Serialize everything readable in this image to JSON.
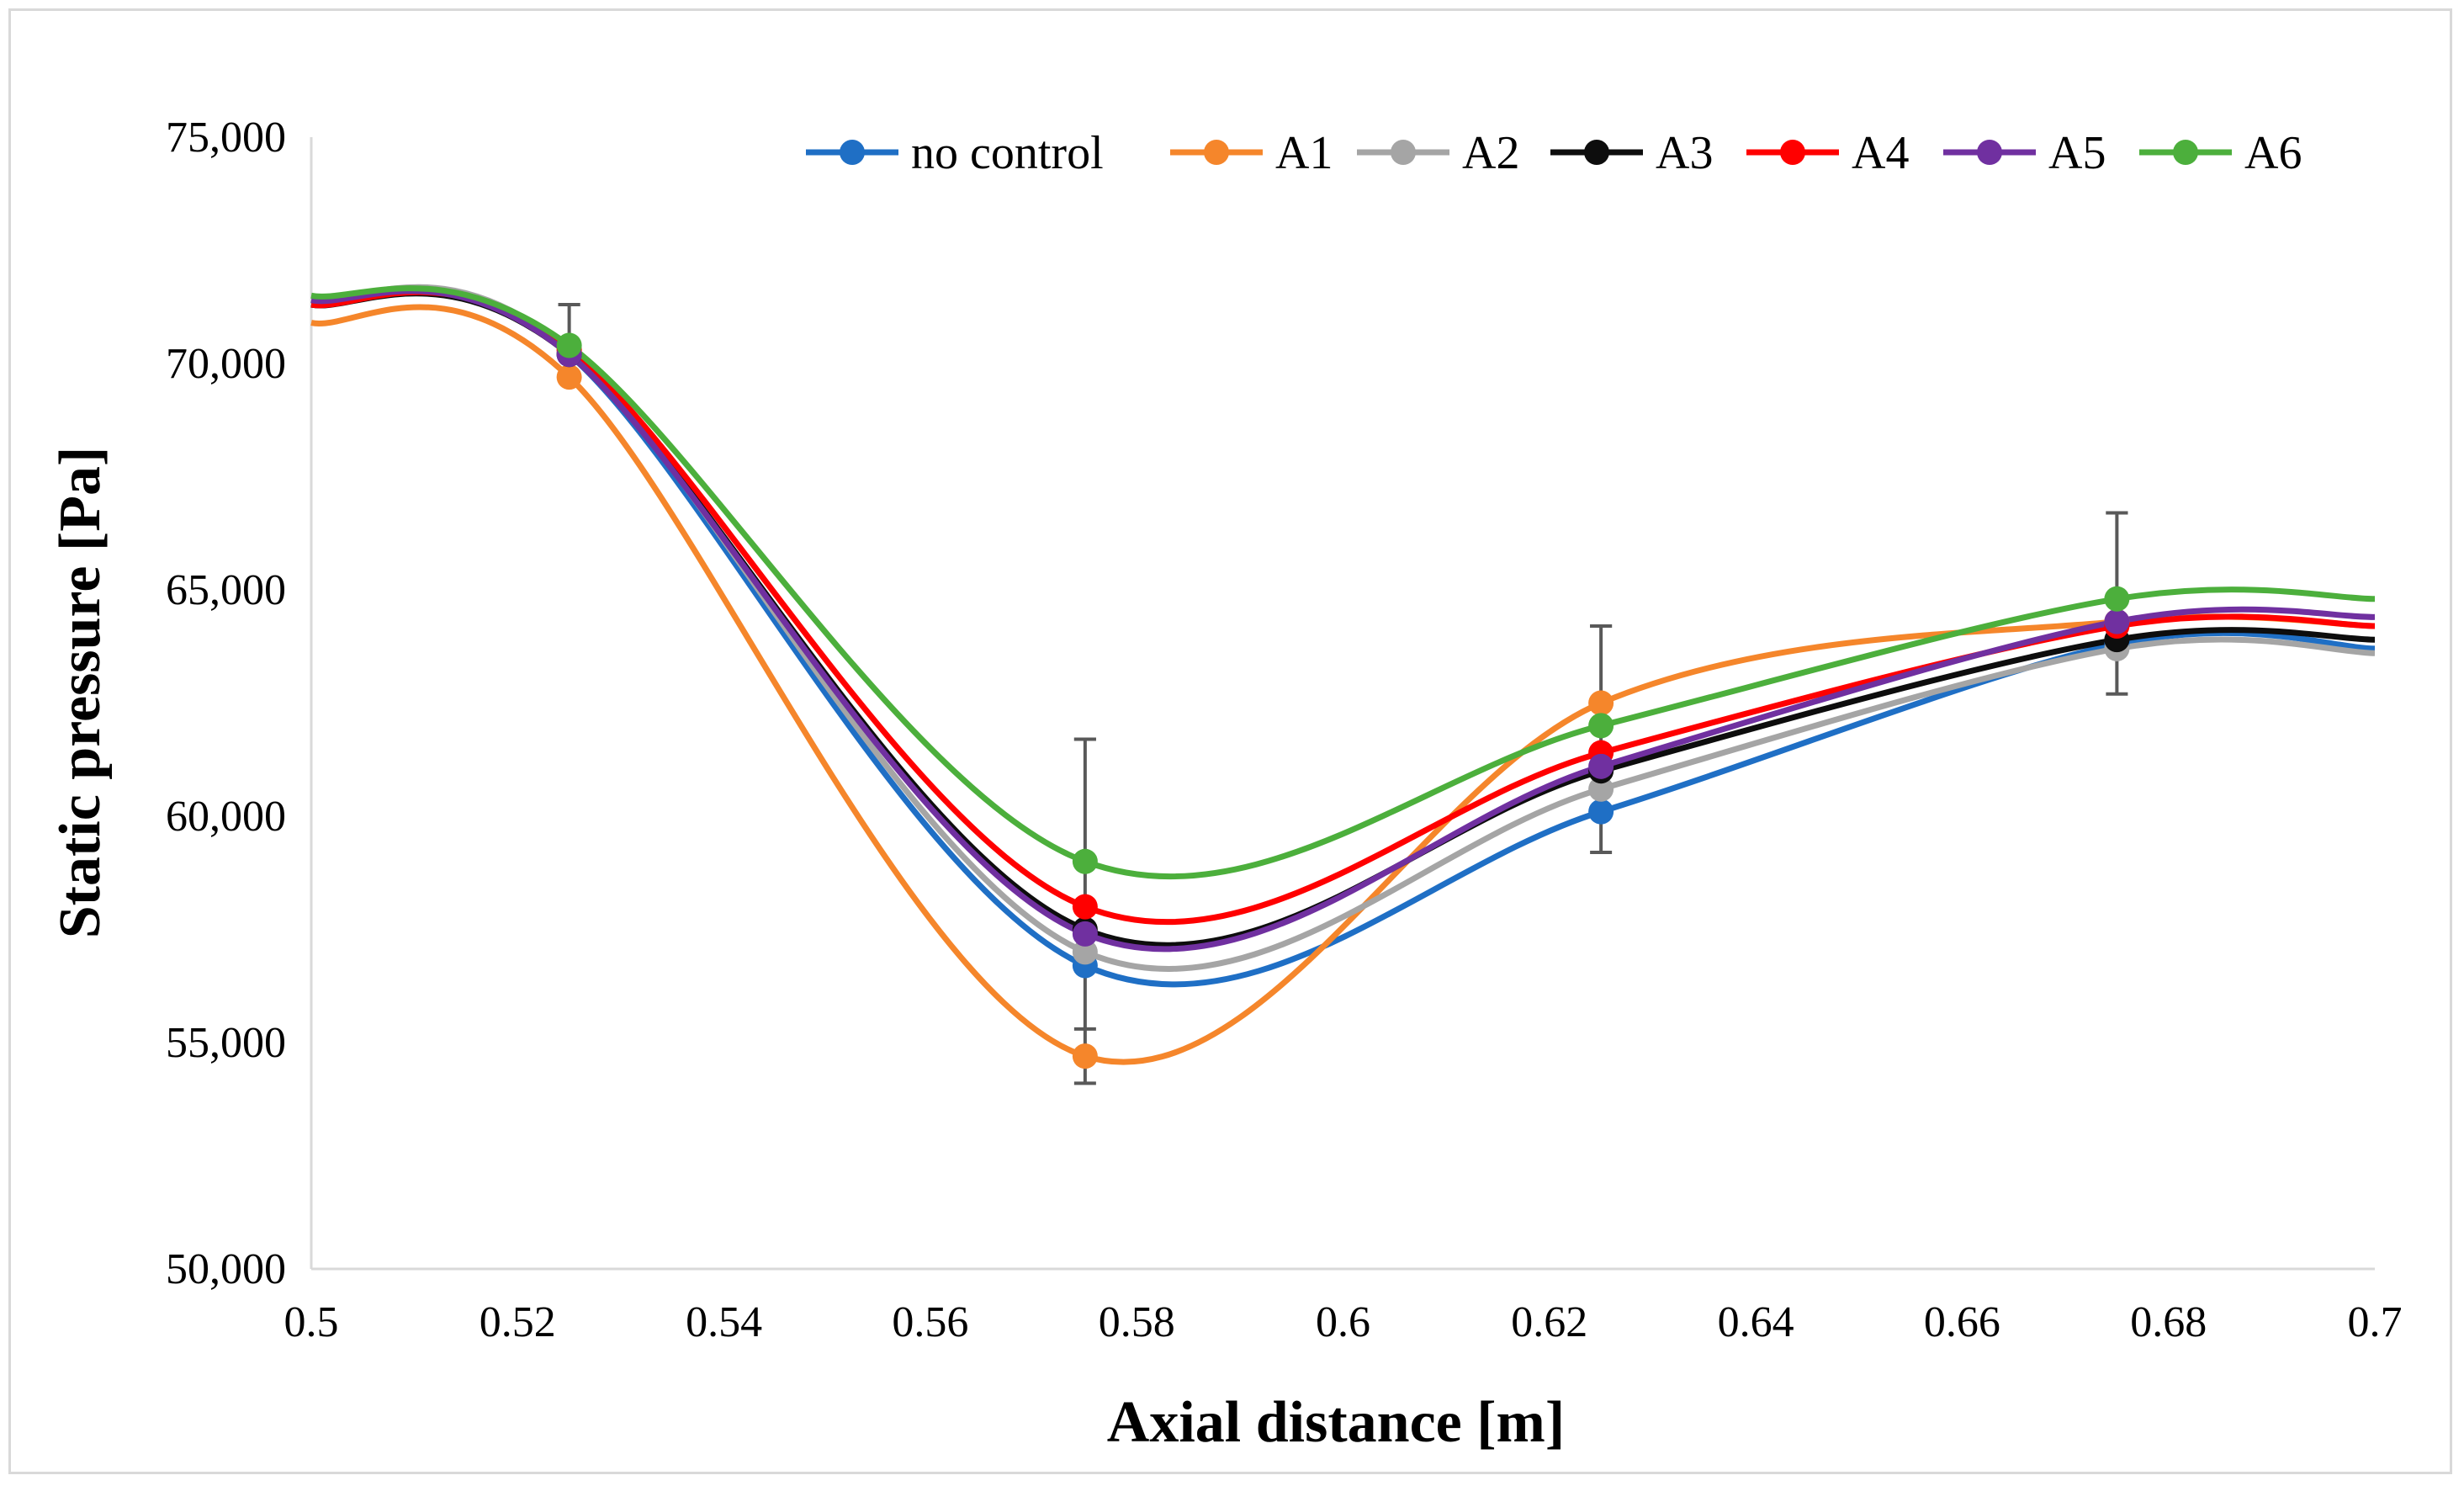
{
  "chart_data": {
    "type": "line",
    "title": "",
    "xlabel": "Axial distance [m]",
    "ylabel": "Static pressure [Pa]",
    "xlim": [
      0.5,
      0.7
    ],
    "ylim": [
      50000,
      75000
    ],
    "x_ticks": [
      0.5,
      0.52,
      0.54,
      0.56,
      0.58,
      0.6,
      0.62,
      0.64,
      0.66,
      0.68,
      0.7
    ],
    "x_tick_labels": [
      "0.5",
      "0.52",
      "0.54",
      "0.56",
      "0.58",
      "0.6",
      "0.62",
      "0.64",
      "0.66",
      "0.68",
      "0.7"
    ],
    "y_ticks": [
      50000,
      55000,
      60000,
      65000,
      70000,
      75000
    ],
    "y_tick_labels": [
      "50,000",
      "55,000",
      "60,000",
      "65,000",
      "70,000",
      "75,000"
    ],
    "grid": false,
    "legend_position": "top",
    "x": [
      0.525,
      0.575,
      0.625,
      0.675
    ],
    "series": [
      {
        "name": "no control",
        "color": "#1f6fc5",
        "values": [
          70200,
          56700,
          60100,
          63800
        ],
        "curve": [
          [
            0.5,
            71300
          ],
          [
            0.525,
            70200
          ],
          [
            0.575,
            56700
          ],
          [
            0.625,
            60100
          ],
          [
            0.675,
            63800
          ],
          [
            0.7,
            63700
          ]
        ],
        "error_bars": [
          0,
          0,
          0,
          0
        ]
      },
      {
        "name": "A1",
        "color": "#f5862b",
        "values": [
          69700,
          54700,
          62500,
          64300
        ],
        "curve": [
          [
            0.5,
            70900
          ],
          [
            0.525,
            69700
          ],
          [
            0.575,
            54700
          ],
          [
            0.625,
            62500
          ],
          [
            0.675,
            64300
          ],
          [
            0.7,
            64200
          ]
        ],
        "error_bars": [
          0,
          600,
          0,
          0
        ]
      },
      {
        "name": "A2",
        "color": "#a5a5a5",
        "values": [
          70300,
          57000,
          60600,
          63700
        ],
        "curve": [
          [
            0.5,
            71400
          ],
          [
            0.525,
            70300
          ],
          [
            0.575,
            57000
          ],
          [
            0.625,
            60600
          ],
          [
            0.675,
            63700
          ],
          [
            0.7,
            63600
          ]
        ],
        "error_bars": [
          0,
          0,
          0,
          0
        ]
      },
      {
        "name": "A3",
        "color": "#0d0d0d",
        "values": [
          70200,
          57500,
          61000,
          63900
        ],
        "curve": [
          [
            0.5,
            71300
          ],
          [
            0.525,
            70200
          ],
          [
            0.575,
            57500
          ],
          [
            0.625,
            61000
          ],
          [
            0.675,
            63900
          ],
          [
            0.7,
            63900
          ]
        ],
        "error_bars": [
          0,
          0,
          0,
          0
        ]
      },
      {
        "name": "A4",
        "color": "#ff0000",
        "values": [
          70300,
          58000,
          61400,
          64200
        ],
        "curve": [
          [
            0.5,
            71300
          ],
          [
            0.525,
            70300
          ],
          [
            0.575,
            58000
          ],
          [
            0.625,
            61400
          ],
          [
            0.675,
            64200
          ],
          [
            0.7,
            64200
          ]
        ],
        "error_bars": [
          0,
          0,
          0,
          0
        ]
      },
      {
        "name": "A5",
        "color": "#7030a0",
        "values": [
          70200,
          57400,
          61100,
          64300
        ],
        "curve": [
          [
            0.5,
            71400
          ],
          [
            0.525,
            70200
          ],
          [
            0.575,
            57400
          ],
          [
            0.625,
            61100
          ],
          [
            0.675,
            64300
          ],
          [
            0.7,
            64400
          ]
        ],
        "error_bars": [
          0,
          0,
          0,
          0
        ]
      },
      {
        "name": "A6",
        "color": "#4caf3c",
        "values": [
          70400,
          59000,
          62000,
          64800
        ],
        "curve": [
          [
            0.5,
            71500
          ],
          [
            0.525,
            70400
          ],
          [
            0.575,
            59000
          ],
          [
            0.625,
            62000
          ],
          [
            0.675,
            64800
          ],
          [
            0.7,
            64800
          ]
        ],
        "error_bars": [
          900,
          2700,
          2200,
          1900
        ]
      }
    ],
    "error_bar_ranges": [
      {
        "x": 0.525,
        "low": 69600,
        "high": 71300
      },
      {
        "x": 0.575,
        "low": 54100,
        "high": 61700
      },
      {
        "x": 0.625,
        "low": 59200,
        "high": 64200
      },
      {
        "x": 0.675,
        "low": 62700,
        "high": 66700
      }
    ],
    "error_bar_color": "#595959"
  }
}
